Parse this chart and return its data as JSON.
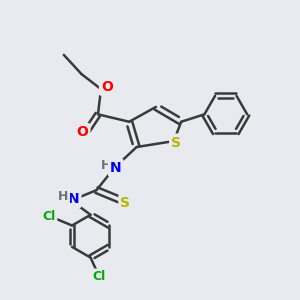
{
  "bg_color": "#e8eaf0",
  "bond_color": "#3a3a3a",
  "bond_width": 1.8,
  "atom_colors": {
    "O": "#ff0000",
    "S": "#b8b800",
    "N": "#0000ee",
    "Cl": "#00aa00",
    "C": "#3a3a3a",
    "H": "#707070"
  }
}
